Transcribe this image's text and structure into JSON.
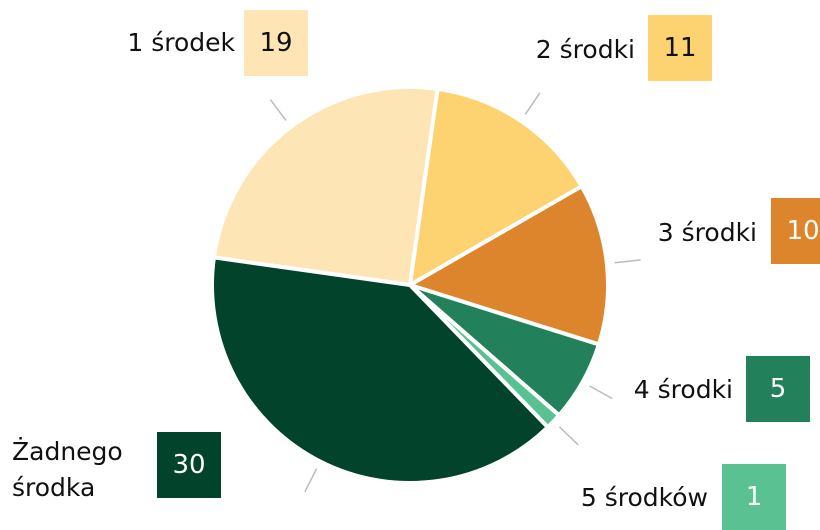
{
  "chart_data": {
    "type": "pie",
    "categories": [
      "1 środek",
      "2 środki",
      "3 środki",
      "4 środki",
      "5 środków",
      "Żadnego środka"
    ],
    "values": [
      19,
      11,
      10,
      5,
      1,
      30
    ],
    "colors": [
      "#fee5b6",
      "#fdd271",
      "#dd852c",
      "#22805a",
      "#5ac192",
      "#02432b"
    ]
  }
}
